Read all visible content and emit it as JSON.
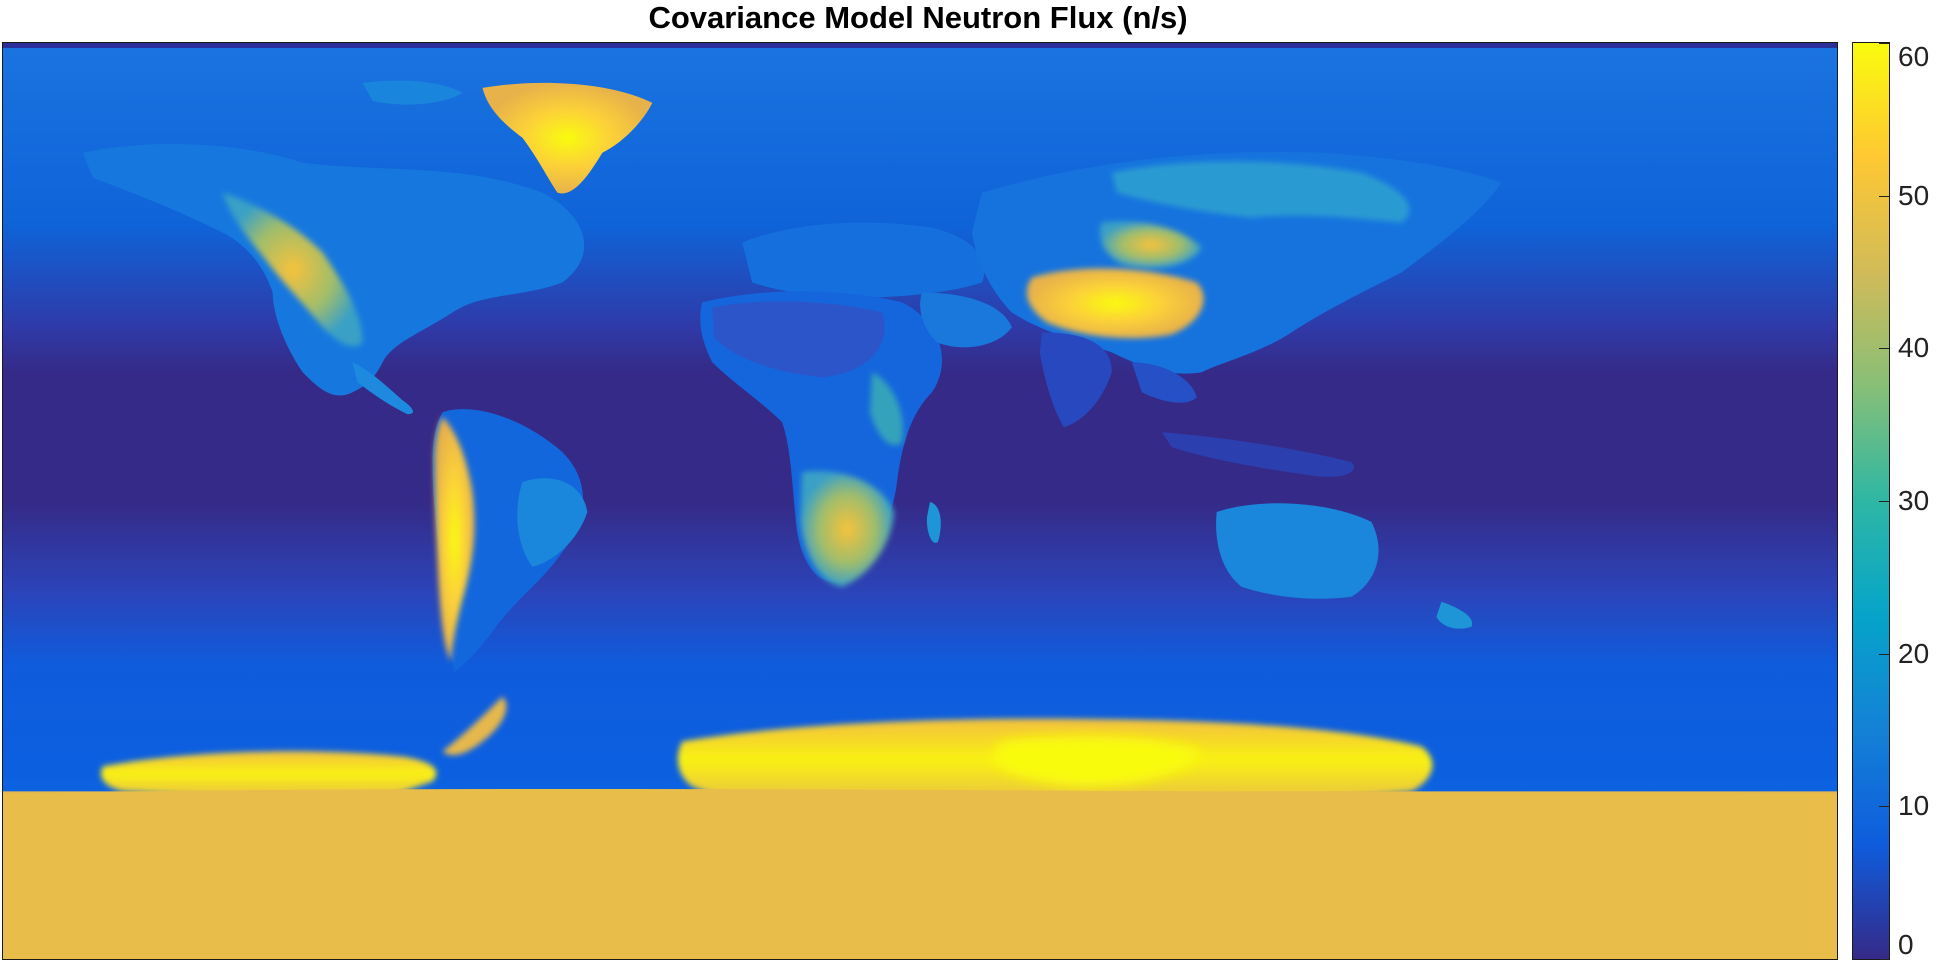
{
  "figure": {
    "title": "Covariance Model Neutron Flux (n/s)"
  },
  "chart_data": {
    "type": "heatmap",
    "title": "Covariance Model Neutron Flux (n/s)",
    "projection": "equirectangular",
    "extent": {
      "lon": [
        -180,
        180
      ],
      "lat": [
        -90,
        90
      ]
    },
    "colormap": "parula",
    "colorbar": {
      "range": [
        0,
        60
      ],
      "ticks": [
        0,
        10,
        20,
        30,
        40,
        50,
        60
      ],
      "tick_labels": [
        "0",
        "10",
        "20",
        "30",
        "40",
        "50",
        "60"
      ],
      "orientation": "vertical",
      "placement": "right",
      "colors": [
        "#352a87",
        "#0f5cdd",
        "#1481d6",
        "#06a4ca",
        "#2eb7a4",
        "#87bf77",
        "#d1bb59",
        "#fec832",
        "#f9fb0e"
      ]
    },
    "regions": [
      {
        "name": "equatorial band",
        "value": 2
      },
      {
        "name": "mid-latitude ocean",
        "value": 12
      },
      {
        "name": "high-latitude ocean",
        "value": 14
      },
      {
        "name": "Greenland",
        "value": 52
      },
      {
        "name": "Tibetan Plateau",
        "value": 60
      },
      {
        "name": "Andes",
        "value": 55
      },
      {
        "name": "Rocky Mountains",
        "value": 45
      },
      {
        "name": "Southern Africa",
        "value": 38
      },
      {
        "name": "Antarctica",
        "value": 56
      }
    ],
    "grid": false
  }
}
